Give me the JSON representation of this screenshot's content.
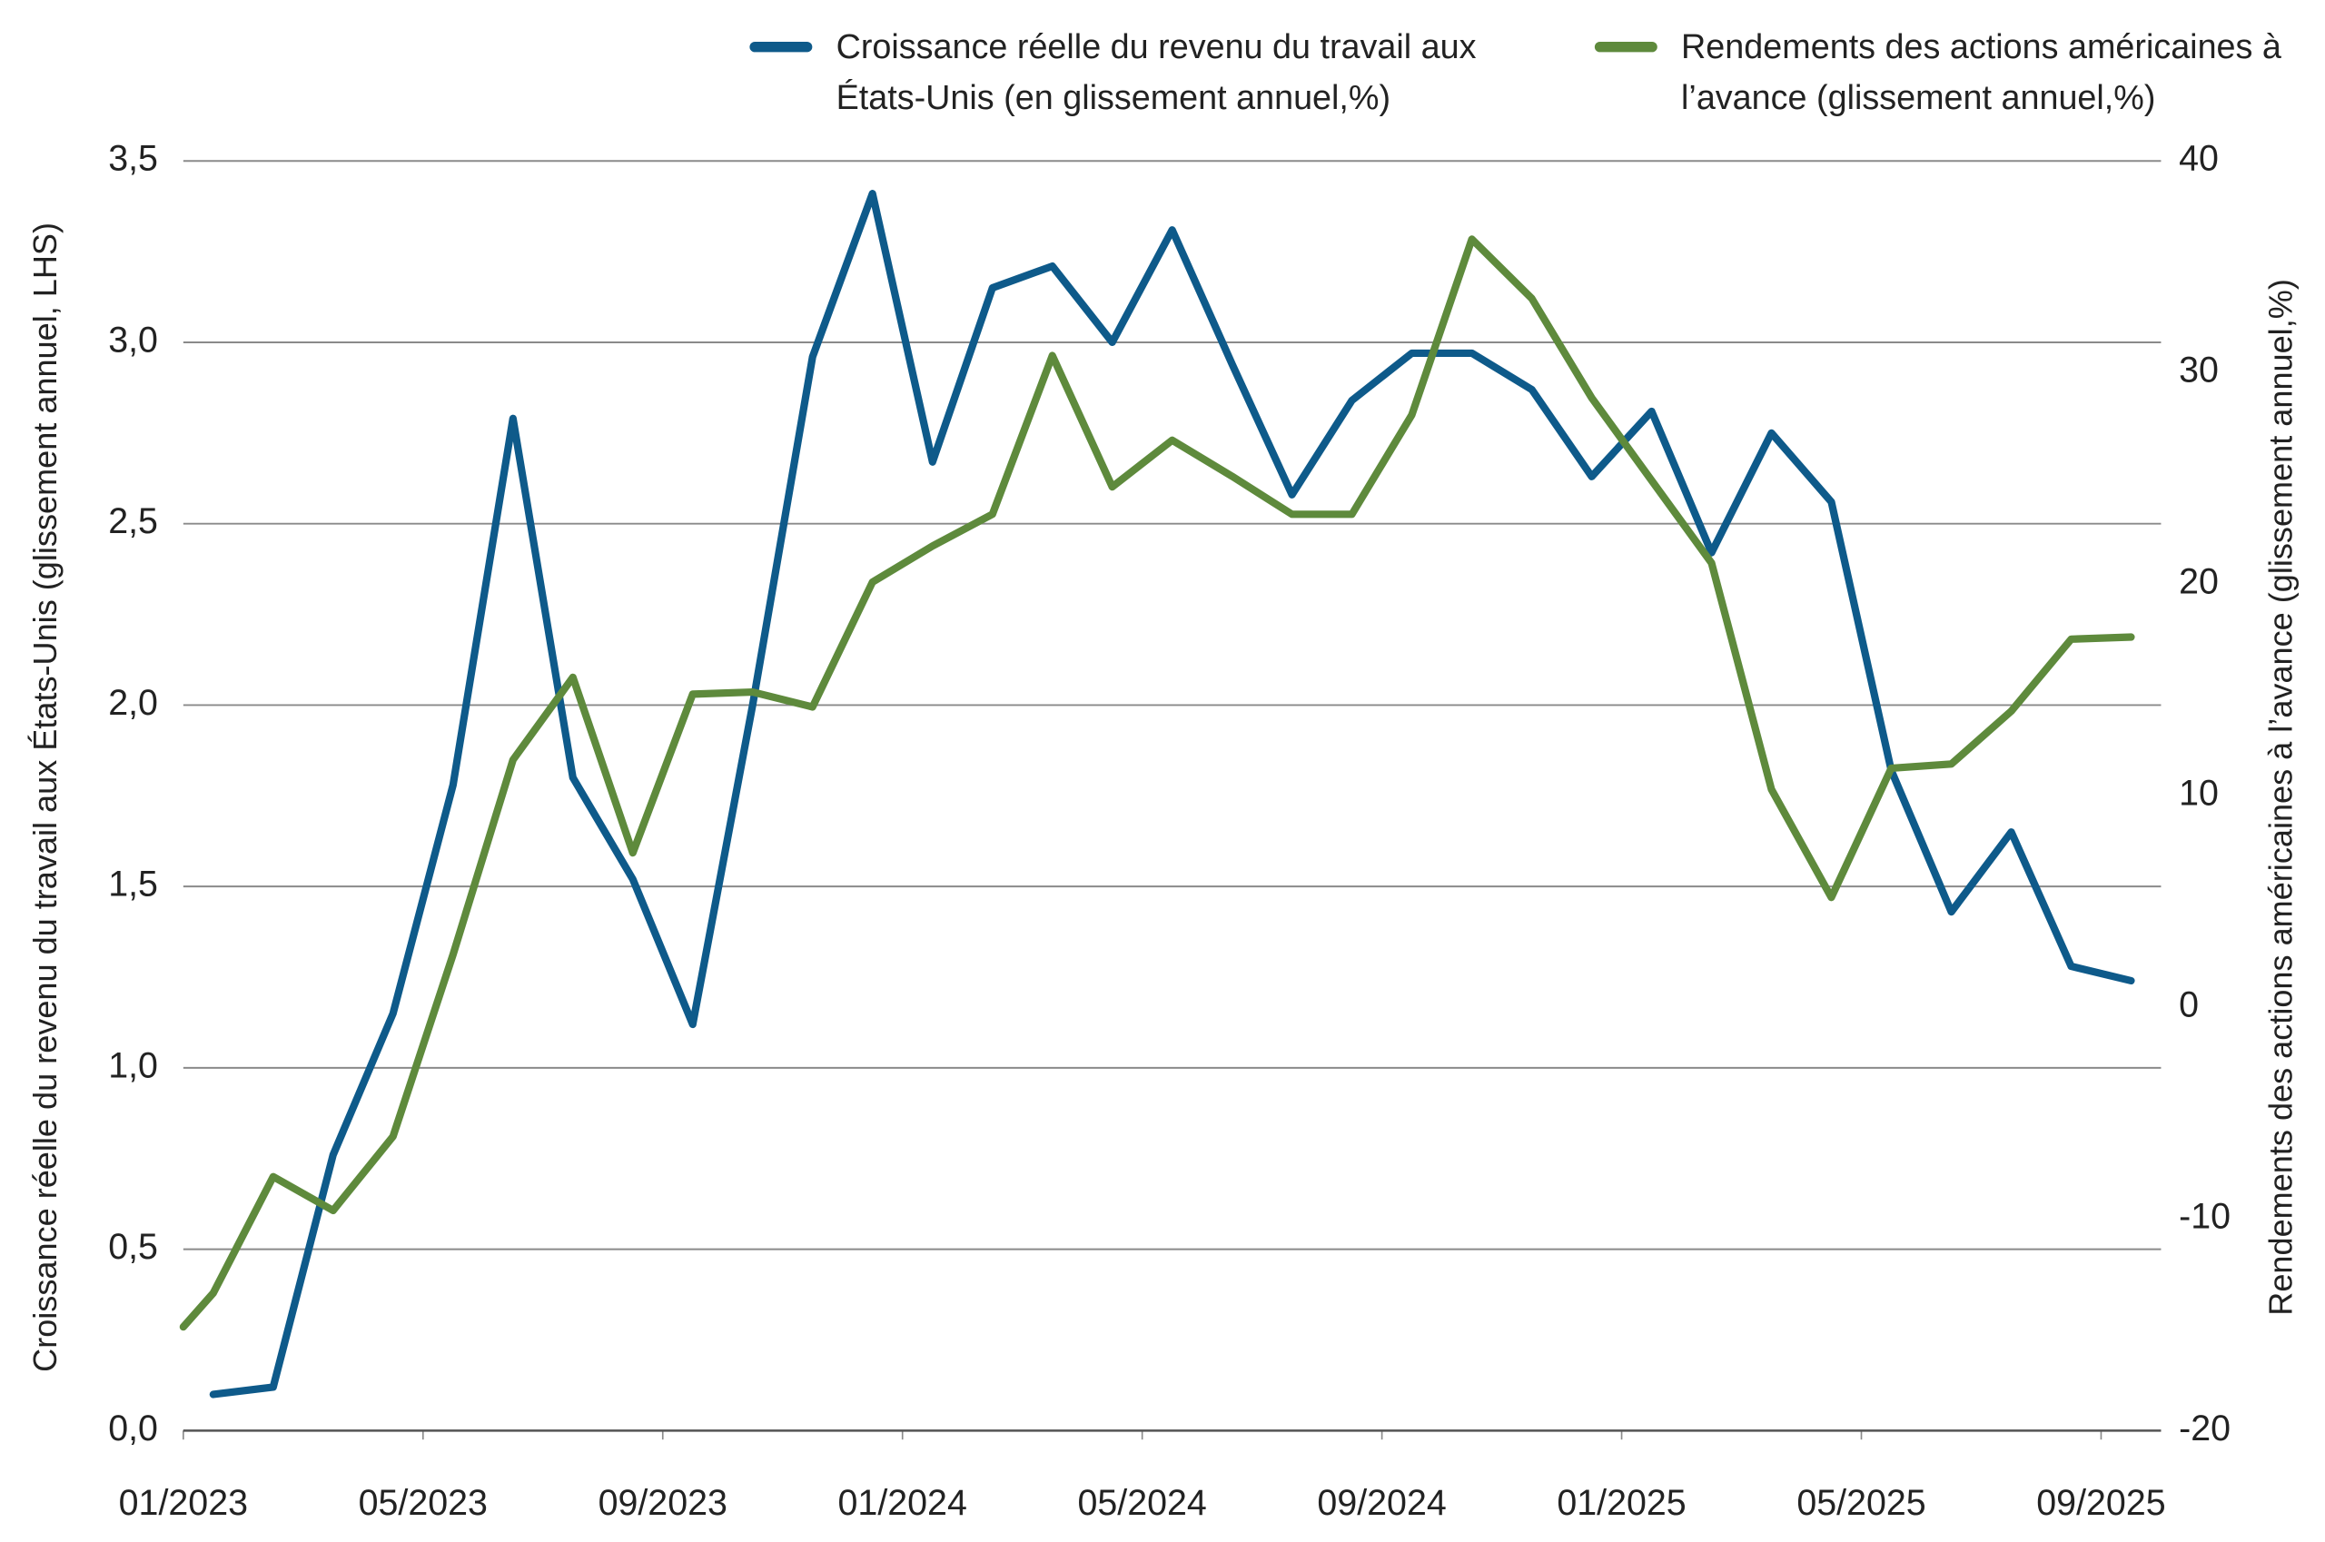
{
  "chart_data": {
    "type": "line",
    "x": [
      0,
      0.5,
      1.5,
      2.5,
      3.5,
      4.5,
      5.5,
      6.5,
      7.5,
      8.5,
      9.5,
      10.5,
      11.5,
      12.5,
      13.5,
      14.5,
      15.5,
      16.5,
      17.5,
      18.5,
      19.5,
      20.5,
      21.5,
      22.5,
      23.5,
      24.5,
      25.5,
      26.5,
      27.5,
      28.5,
      29.5,
      30.5,
      31.5,
      32.5
    ],
    "xlim": [
      0,
      33
    ],
    "xticks": [
      {
        "value": 0,
        "label": "01/2023"
      },
      {
        "value": 4,
        "label": "05/2023"
      },
      {
        "value": 8,
        "label": "09/2023"
      },
      {
        "value": 12,
        "label": "01/2024"
      },
      {
        "value": 16,
        "label": "05/2024"
      },
      {
        "value": 20,
        "label": "09/2024"
      },
      {
        "value": 24,
        "label": "01/2025"
      },
      {
        "value": 28,
        "label": "05/2025"
      },
      {
        "value": 32,
        "label": "09/2025"
      }
    ],
    "ylabel": "Croissance réelle du revenu du travail aux États-Unis (glissement annuel, LHS)",
    "y2label": "Rendements des actions américaines à l’avance (glissement annuel,%)",
    "ylim": [
      0,
      3.5
    ],
    "yticks": [
      {
        "value": 0,
        "label": "0,0"
      },
      {
        "value": 0.5,
        "label": "0,5"
      },
      {
        "value": 1,
        "label": "1,0"
      },
      {
        "value": 1.5,
        "label": "1,5"
      },
      {
        "value": 2,
        "label": "2,0"
      },
      {
        "value": 2.5,
        "label": "2,5"
      },
      {
        "value": 3,
        "label": "3,0"
      },
      {
        "value": 3.5,
        "label": "3,5"
      }
    ],
    "y2lim": [
      -20,
      40
    ],
    "y2ticks": [
      -20,
      -10,
      0,
      10,
      20,
      30,
      40
    ],
    "grid": true,
    "series": [
      {
        "name": "Croissance réelle du revenu du travail aux États-Unis (en glissement annuel,%)",
        "color": "#0e5a8a",
        "values": [
          null,
          0.1,
          0.12,
          0.76,
          1.15,
          1.78,
          2.79,
          1.8,
          1.52,
          1.12,
          2.0,
          2.96,
          3.41,
          2.67,
          3.15,
          3.21,
          3.0,
          3.31,
          2.94,
          2.58,
          2.84,
          2.97,
          2.97,
          2.87,
          2.63,
          2.81,
          2.42,
          2.75,
          2.56,
          1.82,
          1.43,
          1.65,
          1.28,
          1.24
        ]
      },
      {
        "name": "Rendements des actions américaines à l’avance (glissement annuel,%)",
        "color": "#5e8a3c",
        "axis": "y2",
        "values": [
          -15.1,
          -13.5,
          -8.0,
          -9.6,
          -6.1,
          2.5,
          11.7,
          15.6,
          7.3,
          14.8,
          14.9,
          14.2,
          20.1,
          21.8,
          23.3,
          30.8,
          24.6,
          26.8,
          25.1,
          23.3,
          23.3,
          28.0,
          36.3,
          33.5,
          28.8,
          24.9,
          21.0,
          10.3,
          5.2,
          11.3,
          11.5,
          14.0,
          17.4,
          17.5
        ]
      }
    ]
  }
}
